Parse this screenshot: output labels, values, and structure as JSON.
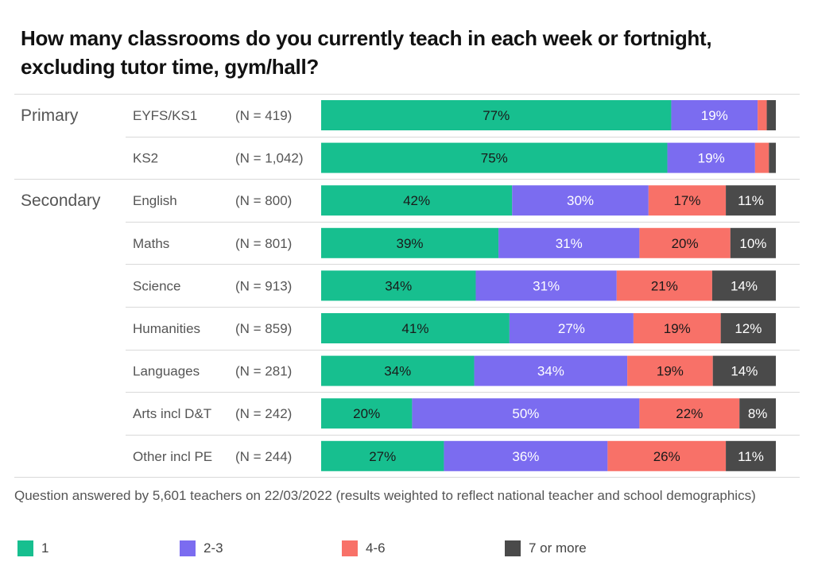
{
  "title": "How many classrooms do you currently teach in each week or fortnight, excluding tutor time, gym/hall?",
  "footnote": "Question answered by 5,601 teachers on 22/03/2022 (results weighted to reflect national teacher and school demographics)",
  "colors": {
    "s1": "#17bf8f",
    "s2": "#7b6cf0",
    "s3": "#f87168",
    "s4": "#4a4a4a",
    "divider": "#d9d9d9"
  },
  "chart_data": {
    "type": "bar",
    "orientation": "horizontal-stacked-100",
    "groups": [
      {
        "name": "Primary",
        "rows": [
          0,
          1
        ]
      },
      {
        "name": "Secondary",
        "rows": [
          2,
          3,
          4,
          5,
          6,
          7,
          8
        ]
      }
    ],
    "categories": [
      "EYFS/KS1",
      "KS2",
      "English",
      "Maths",
      "Science",
      "Humanities",
      "Languages",
      "Arts incl D&T",
      "Other incl PE"
    ],
    "n_labels": [
      "(N = 419)",
      "(N = 1,042)",
      "(N = 800)",
      "(N = 801)",
      "(N = 913)",
      "(N = 859)",
      "(N = 281)",
      "(N = 242)",
      "(N = 244)"
    ],
    "series": [
      {
        "name": "1",
        "values": [
          77,
          75,
          42,
          39,
          34,
          41,
          34,
          20,
          27
        ],
        "labels": [
          "77%",
          "75%",
          "42%",
          "39%",
          "34%",
          "41%",
          "34%",
          "20%",
          "27%"
        ]
      },
      {
        "name": "2-3",
        "values": [
          19,
          19,
          30,
          31,
          31,
          27,
          34,
          50,
          36
        ],
        "labels": [
          "19%",
          "19%",
          "30%",
          "31%",
          "31%",
          "27%",
          "34%",
          "50%",
          "36%"
        ]
      },
      {
        "name": "4-6",
        "values": [
          2,
          3,
          17,
          20,
          21,
          19,
          19,
          22,
          26
        ],
        "labels": [
          "",
          "",
          "17%",
          "20%",
          "21%",
          "19%",
          "19%",
          "22%",
          "26%"
        ]
      },
      {
        "name": "7 or more",
        "values": [
          2,
          1.5,
          11,
          10,
          14,
          12,
          14,
          8,
          11
        ],
        "labels": [
          "",
          "",
          "11%",
          "10%",
          "14%",
          "12%",
          "14%",
          "8%",
          "11%"
        ]
      }
    ],
    "legend_position": "bottom",
    "grid": false
  }
}
